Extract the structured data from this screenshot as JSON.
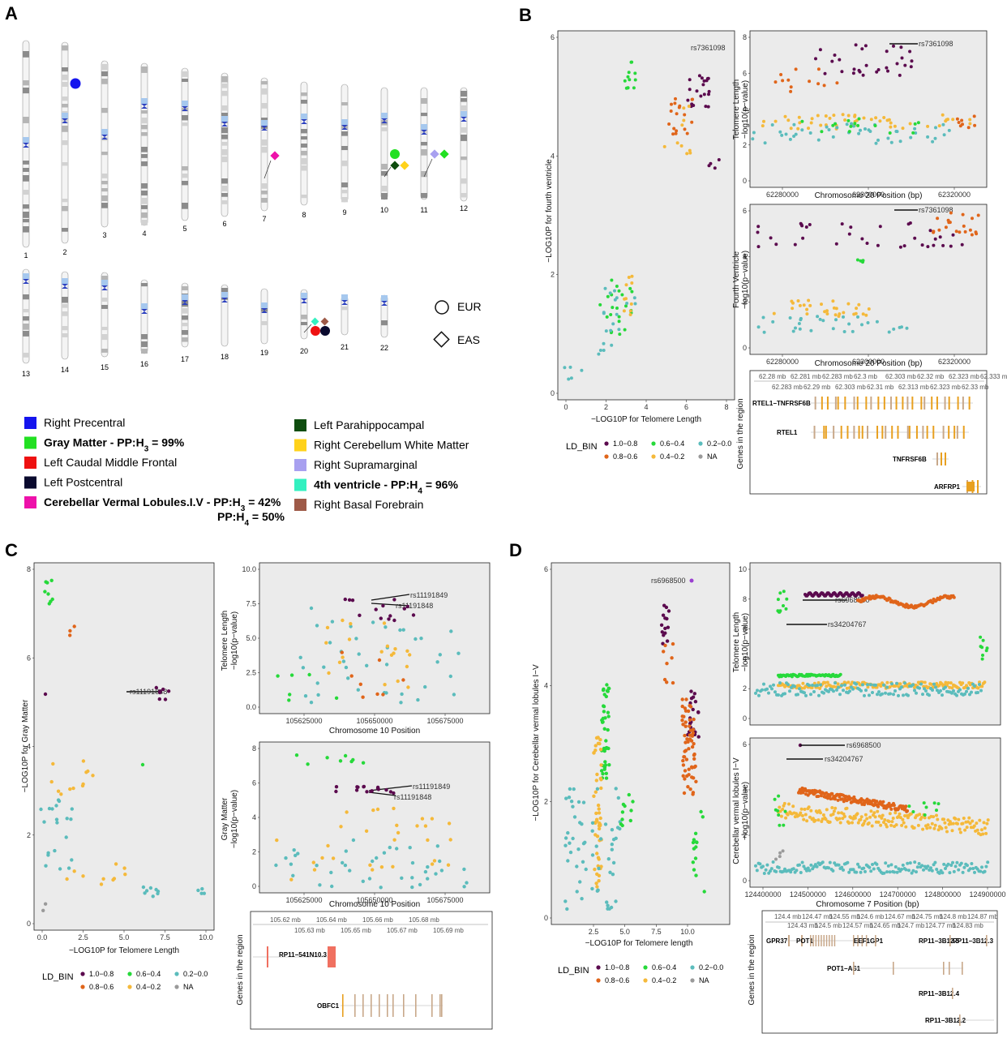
{
  "panels": {
    "A": "A",
    "B": "B",
    "C": "C",
    "D": "D"
  },
  "colors": {
    "ld_10_08": "#5b0a4e",
    "ld_08_06": "#e0651a",
    "ld_06_04": "#26d93a",
    "ld_04_02": "#f5b93a",
    "ld_02_00": "#5bbcbc",
    "ld_na": "#9a9a9a",
    "plot_bg": "#ebebeb",
    "centromere": "#2b3fbf",
    "gene_orange": "#e8a020",
    "gene_red": "#f07060"
  },
  "karyotype": {
    "top_row": [
      "1",
      "2",
      "3",
      "4",
      "5",
      "6",
      "7",
      "8",
      "9",
      "10",
      "11",
      "12"
    ],
    "bottom_row": [
      "13",
      "14",
      "15",
      "16",
      "17",
      "18",
      "19",
      "20",
      "21",
      "22"
    ],
    "shape_legend": {
      "eur": "EUR",
      "eas": "EAS"
    }
  },
  "trait_legend": {
    "left": [
      {
        "color": "#1515ee",
        "label": "Right Precentral"
      },
      {
        "color": "#22e022",
        "label": "Gray Matter - PP:H",
        "sub": "3",
        "tail": " = 99%",
        "bold": true
      },
      {
        "color": "#ee1111",
        "label": "Left Caudal Middle Frontal"
      },
      {
        "color": "#0a0a2e",
        "label": "Left Postcentral"
      },
      {
        "color": "#ee11aa",
        "label": "Cerebellar Vermal Lobules.I.V - PP:H",
        "sub": "3",
        "tail": " = 42%",
        "bold": true
      }
    ],
    "left_extra": {
      "label": "PP:H",
      "sub": "4",
      "tail": " = 50%"
    },
    "right": [
      {
        "color": "#0f4d0f",
        "label": "Left Parahippocampal"
      },
      {
        "color": "#ffd21a",
        "label": "Right Cerebellum White Matter"
      },
      {
        "color": "#a8a0f0",
        "label": "Right Supramarginal"
      },
      {
        "color": "#33f0c0",
        "label": "4th ventricle - PP:H",
        "sub": "4",
        "tail": " = 96%",
        "bold": true
      },
      {
        "color": "#9e5a48",
        "label": "Right Basal Forebrain"
      }
    ]
  },
  "panel_B": {
    "scatter": {
      "ylabel": "−LOG10P for fourth ventricle",
      "xlabel": "−LOG10P for Telomere Length",
      "annotation": "rs7361098",
      "xticks": [
        "0",
        "2",
        "4",
        "6",
        "8"
      ],
      "yticks": [
        "0",
        "2",
        "4",
        "6"
      ]
    },
    "top": {
      "ylabel1": "Telomere Length",
      "ylabel2": "−log10(p−value)",
      "xlabel": "Chromosome 20 Position (bp)",
      "annotation": "rs7361098",
      "xticks": [
        "62280000",
        "62300000",
        "62320000"
      ],
      "yticks": [
        "0",
        "2",
        "4",
        "6",
        "8"
      ]
    },
    "bottom": {
      "ylabel1": "Fourth Ventricle",
      "ylabel2": "−log10(p−value)",
      "xlabel": "Chromosome 20 Position (bp)",
      "annotation": "rs7361098",
      "xticks": [
        "62280000",
        "62300000",
        "62320000"
      ],
      "yticks": [
        "0",
        "2",
        "4",
        "6"
      ]
    },
    "genes": {
      "ylabel": "Genes in the region",
      "ruler_top": [
        "62.28 mb",
        "62.281 mb",
        "62.283 mb",
        "62.3 mb",
        "62.303 mb",
        "62.32 mb",
        "62.323 mb",
        "62.333 mb"
      ],
      "ruler_bottom": [
        "62.283 mb",
        "62.29 mb",
        "62.303 mb",
        "62.31 mb",
        "62.313 mb",
        "62.323 mb",
        "62.33 mb"
      ],
      "names": [
        "RTEL1−TNFRSF6B",
        "RTEL1",
        "TNFRSF6B",
        "ARFRP1"
      ]
    },
    "ld_legend": {
      "title": "LD_BIN",
      "items": [
        "1.0−0.8",
        "0.6−0.4",
        "0.2−0.0",
        "0.8−0.6",
        "0.4−0.2",
        "NA"
      ]
    }
  },
  "panel_C": {
    "scatter": {
      "ylabel": "−LOG10P for Gray Matter",
      "xlabel": "−LOG10P for Telomere Length",
      "annotation": "rs11191848",
      "xticks": [
        "0.0",
        "2.5",
        "5.0",
        "7.5",
        "10.0"
      ],
      "yticks": [
        "0",
        "2",
        "4",
        "6",
        "8"
      ]
    },
    "top": {
      "ylabel1": "Telomere Length",
      "ylabel2": "−log10(p−value)",
      "xlabel": "Chromosome 10 Position",
      "ann1": "rs11191849",
      "ann2": "rs11191848",
      "xticks": [
        "105625000",
        "105650000",
        "105675000"
      ],
      "yticks": [
        "0.0",
        "2.5",
        "5.0",
        "7.5",
        "10.0"
      ]
    },
    "bottom": {
      "ylabel1": "Gray Matter",
      "ylabel2": "−log10(p−value)",
      "xlabel": "Chromosome 10 Position",
      "ann1": "rs11191849",
      "ann2": "rs11191848",
      "xticks": [
        "105625000",
        "105650000",
        "105675000"
      ],
      "yticks": [
        "0",
        "2",
        "4",
        "6",
        "8"
      ]
    },
    "genes": {
      "ylabel": "Genes in the region",
      "ruler_top": [
        "105.62 mb",
        "105.64 mb",
        "105.66 mb",
        "105.68 mb"
      ],
      "ruler_bottom": [
        "105.63 mb",
        "105.65 mb",
        "105.67 mb",
        "105.69 mb"
      ],
      "names": [
        "RP11−541N10.3",
        "OBFC1"
      ]
    },
    "ld_legend": {
      "title": "LD_BIN",
      "items": [
        "1.0−0.8",
        "0.6−0.4",
        "0.2−0.0",
        "0.8−0.6",
        "0.4−0.2",
        "NA"
      ]
    }
  },
  "panel_D": {
    "scatter": {
      "ylabel": "−LOG10P for Cerebellar vermal lobules I−V",
      "xlabel": "−LOG10P for Telomere length",
      "annotation": "rs6968500",
      "xticks": [
        "2.5",
        "5.0",
        "7.5",
        "10.0"
      ],
      "yticks": [
        "0",
        "2",
        "4",
        "6"
      ]
    },
    "top": {
      "ylabel1": "Telomere Length",
      "ylabel2": "−log10(p−value)",
      "ann1": "rs6968500",
      "ann2": "rs34204767",
      "yticks": [
        "0",
        "2",
        "4",
        "6",
        "8",
        "10"
      ]
    },
    "bottom": {
      "ylabel1": "Cerebellar vermal lobules I−V",
      "ylabel2": "−log10(p−value)",
      "xlabel": "Chromosome 7 Position (bp)",
      "ann1": "rs6968500",
      "ann2": "rs34204767",
      "xticks": [
        "124400000",
        "124500000",
        "124600000",
        "124700000",
        "124800000",
        "124900000"
      ],
      "yticks": [
        "0",
        "2",
        "4",
        "6"
      ]
    },
    "genes": {
      "ylabel": "Genes in the region",
      "ruler_top": [
        "124.4 mb",
        "124.47 mb",
        "124.55 mb",
        "124.6 mb",
        "124.67 mb",
        "124.75 mb",
        "124.8 mb",
        "124.87 mb"
      ],
      "ruler_bottom": [
        "124.43 mb",
        "124.5 mb",
        "124.57 mb",
        "124.65 mb",
        "124.7 mb",
        "124.77 mb",
        "124.83 mb"
      ],
      "names": [
        "GPR37",
        "POT1",
        "EEF1GP1",
        "RP11−3B12.5",
        "RP11−3B12.3",
        "POT1−AS1",
        "RP11−3B12.4",
        "RP11−3B12.2"
      ]
    },
    "ld_legend": {
      "title": "LD_BIN",
      "items": [
        "1.0−0.8",
        "0.6−0.4",
        "0.2−0.0",
        "0.8−0.6",
        "0.4−0.2",
        "NA"
      ]
    }
  }
}
